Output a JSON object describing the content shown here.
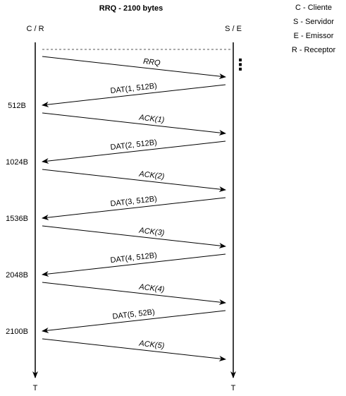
{
  "title": "RRQ - 2100 bytes",
  "client_label": "C / R",
  "server_label": "S / E",
  "time_label_left": "T",
  "time_label_right": "T",
  "continuation": "⋮",
  "legend": [
    "C - Cliente",
    "S - Servidor",
    "E - Emissor",
    "R - Receptor"
  ],
  "messages": [
    {
      "label": "RRQ",
      "direction": "to-server",
      "italic": true
    },
    {
      "label": "DAT(1, 512B)",
      "direction": "to-client",
      "italic": false,
      "received": "512B"
    },
    {
      "label": "ACK(1)",
      "direction": "to-server",
      "italic": true
    },
    {
      "label": "DAT(2, 512B)",
      "direction": "to-client",
      "italic": false,
      "received": "1024B"
    },
    {
      "label": "ACK(2)",
      "direction": "to-server",
      "italic": true
    },
    {
      "label": "DAT(3, 512B)",
      "direction": "to-client",
      "italic": false,
      "received": "1536B"
    },
    {
      "label": "ACK(3)",
      "direction": "to-server",
      "italic": true
    },
    {
      "label": "DAT(4, 512B)",
      "direction": "to-client",
      "italic": false,
      "received": "2048B"
    },
    {
      "label": "ACK(4)",
      "direction": "to-server",
      "italic": true
    },
    {
      "label": "DAT(5, 52B)",
      "direction": "to-client",
      "italic": false,
      "received": "2100B"
    },
    {
      "label": "ACK(5)",
      "direction": "to-server",
      "italic": true
    }
  ]
}
